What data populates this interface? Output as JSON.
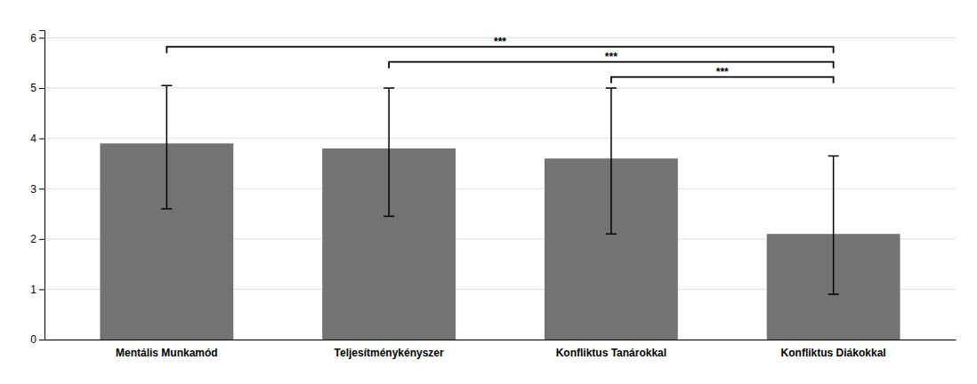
{
  "chart_data": {
    "type": "bar",
    "categories": [
      "Mentális Munkamód",
      "Teljesítménykényszer",
      "Konfliktus Tanárokkal",
      "Konfliktus Diákokkal"
    ],
    "values": [
      3.9,
      3.8,
      3.6,
      2.1
    ],
    "error_lower": [
      1.3,
      1.35,
      1.5,
      1.2
    ],
    "error_upper": [
      1.15,
      1.2,
      1.4,
      1.55
    ],
    "color": "#737373",
    "ylim": [
      0,
      6.15
    ],
    "yticks": [
      0,
      1,
      2,
      3,
      4,
      5,
      6
    ],
    "grid": true,
    "significance_brackets": [
      {
        "left": "Mentális Munkamód",
        "right": "Konfliktus Diákokkal",
        "height": 5.82,
        "label": "***"
      },
      {
        "left": "Teljesítménykényszer",
        "right": "Konfliktus Diákokkal",
        "height": 5.52,
        "label": "***"
      },
      {
        "left": "Konfliktus Tanárokkal",
        "right": "Konfliktus Diákokkal",
        "height": 5.22,
        "label": "***"
      }
    ]
  }
}
